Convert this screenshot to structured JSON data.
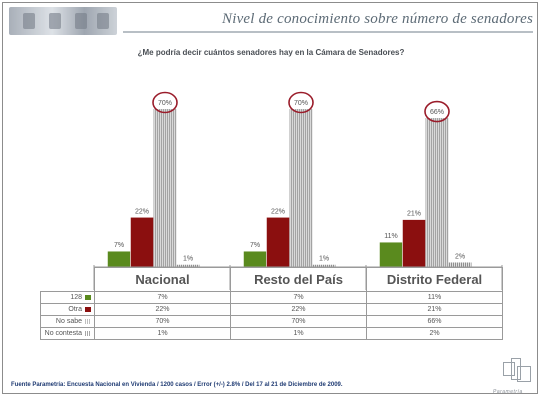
{
  "title": "Nivel de conocimiento sobre  número de  senadores",
  "question": "¿Me podría decir cuántos senadores hay en la Cámara de Senadores?",
  "source": "Fuente Parametría: Encuesta Nacional en Vivienda / 1200 casos / Error (+/-) 2.8% / Del 17 al 21 de Diciembre de 2009.",
  "brand": "Parametría",
  "chart_data": {
    "type": "bar",
    "categories": [
      "Nacional",
      "Resto del País",
      "Distrito Federal"
    ],
    "series": [
      {
        "name": "128",
        "values": [
          7,
          7,
          11
        ],
        "labels": [
          "7%",
          "7%",
          "11%"
        ],
        "color": "#5a8a1e"
      },
      {
        "name": "Otra",
        "values": [
          22,
          22,
          21
        ],
        "labels": [
          "22%",
          "22%",
          "21%"
        ],
        "color": "#8b0f0f"
      },
      {
        "name": "No sabe",
        "values": [
          70,
          70,
          66
        ],
        "labels": [
          "70%",
          "70%",
          "66%"
        ],
        "color": "#bfbfbf"
      },
      {
        "name": "No contesta",
        "values": [
          1,
          1,
          2
        ],
        "labels": [
          "1%",
          "1%",
          "2%"
        ],
        "color": "#a6a6a6"
      }
    ],
    "highlighted_series": "No sabe",
    "ylim": [
      0,
      80
    ],
    "grid": false,
    "legend": "table-rows-left"
  },
  "table": {
    "rows": [
      {
        "label": "128",
        "values": [
          "7%",
          "7%",
          "11%"
        ]
      },
      {
        "label": "Otra",
        "values": [
          "22%",
          "22%",
          "21%"
        ]
      },
      {
        "label": "No sabe",
        "values": [
          "70%",
          "70%",
          "66%"
        ]
      },
      {
        "label": "No contesta",
        "values": [
          "1%",
          "1%",
          "2%"
        ]
      }
    ]
  },
  "colors": {
    "title": "#5d6b76",
    "source": "#1f3b73",
    "highlight_circle": "#9a1c2a",
    "green_bar": "#5a8a1e",
    "red_bar": "#8b0f0f",
    "gray_bar": "#bfbfbf"
  }
}
